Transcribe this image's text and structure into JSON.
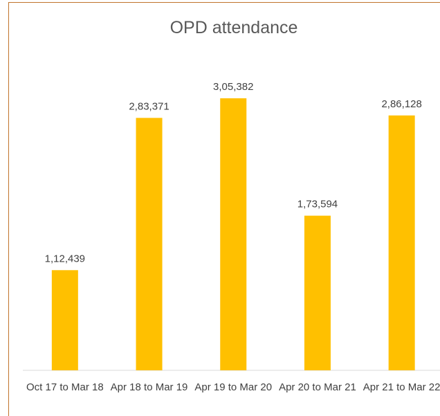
{
  "chart_data": {
    "type": "bar",
    "title": "OPD attendance",
    "categories": [
      "Oct 17 to Mar 18",
      "Apr 18 to Mar 19",
      "Apr 19 to Mar 20",
      "Apr 20 to Mar 21",
      "Apr 21 to Mar 22"
    ],
    "values": [
      112439,
      283371,
      305382,
      173594,
      286128
    ],
    "value_labels": [
      "1,12,439",
      "2,83,371",
      "3,05,382",
      "1,73,594",
      "2,86,128"
    ],
    "color": "#ffc000"
  }
}
